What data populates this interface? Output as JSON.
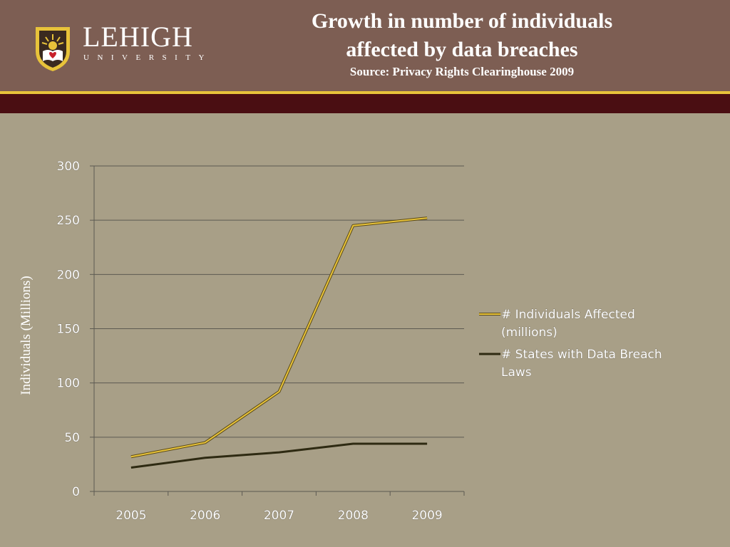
{
  "header": {
    "logo_word": "LEHIGH",
    "logo_sub": "UNIVERSITY",
    "title_line1": "Growth in number of individuals",
    "title_line2": "affected by data breaches",
    "source": "Source: Privacy Rights Clearinghouse 2009"
  },
  "colors": {
    "header_bg": "#7d5e53",
    "gold": "#e8c33a",
    "maroon": "#4a0e12",
    "slide_bg": "#a89f87"
  },
  "chart_data": {
    "type": "line",
    "ylabel": "Individuals (Millions)",
    "xlabel": "",
    "ylim": [
      0,
      300
    ],
    "yticks": [
      "0",
      "50",
      "100",
      "150",
      "200",
      "250",
      "300"
    ],
    "categories": [
      "2005",
      "2006",
      "2007",
      "2008",
      "2009"
    ],
    "grid": true,
    "legend_position": "right",
    "series": [
      {
        "name": "# Individuals Affected (millions)",
        "legend_lines": [
          "# Individuals Affected",
          "(millions)"
        ],
        "color": "#e8c33a",
        "values": [
          32,
          45,
          92,
          245,
          252
        ]
      },
      {
        "name": "# States with Data Breach Laws",
        "legend_lines": [
          "# States with Data Breach",
          "Laws"
        ],
        "color": "#2e2a12",
        "values": [
          22,
          31,
          36,
          44,
          44
        ]
      }
    ]
  }
}
